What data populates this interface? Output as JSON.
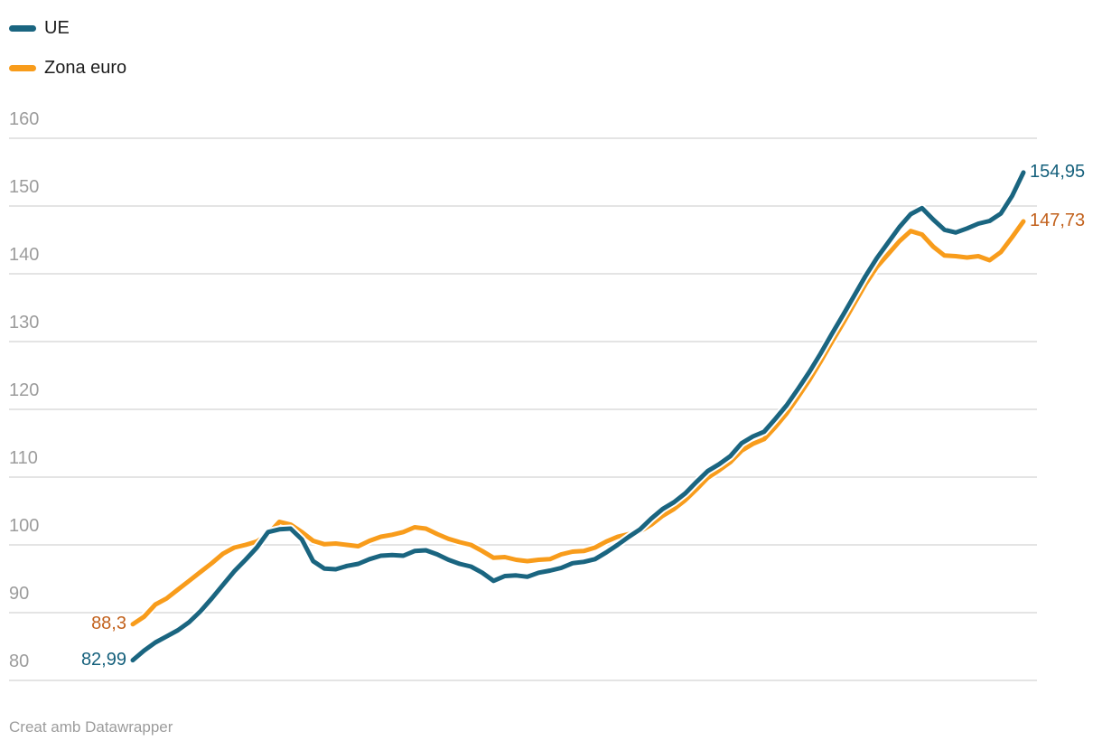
{
  "legend": {
    "items": [
      {
        "label": "UE",
        "color": "#1A6580"
      },
      {
        "label": "Zona euro",
        "color": "#F89C1B"
      }
    ]
  },
  "footer": {
    "text": "Creat amb Datawrapper"
  },
  "colors": {
    "ue_line": "#1A6580",
    "ue_label": "#15607C",
    "zona_euro_line": "#F89C1B",
    "zona_euro_label": "#C2611C",
    "gridline": "#E4E4E4",
    "axis_text": "#9C9C9C",
    "legend_text": "#1D1D1D",
    "background": "#FFFFFF"
  },
  "chart_data": {
    "type": "line",
    "title": "",
    "xlabel": "",
    "ylabel": "",
    "grid": true,
    "legend_position": "top-left",
    "y_axis": {
      "min": 80,
      "max": 160,
      "ticks": [
        80,
        90,
        100,
        110,
        120,
        130,
        140,
        150,
        160
      ]
    },
    "series": [
      {
        "name": "UE",
        "color": "#1A6580",
        "label_color": "#15607C",
        "start_label": "82,99",
        "end_label": "154,95",
        "start_value": 82.99,
        "end_value": 154.95,
        "values": [
          82.99,
          84.4,
          85.6,
          86.5,
          87.4,
          88.6,
          90.2,
          92.1,
          94.1,
          96.1,
          97.8,
          99.6,
          101.9,
          102.3,
          102.4,
          100.8,
          97.6,
          96.5,
          96.4,
          96.9,
          97.2,
          97.9,
          98.4,
          98.5,
          98.4,
          99.1,
          99.2,
          98.6,
          97.8,
          97.2,
          96.8,
          95.9,
          94.7,
          95.4,
          95.5,
          95.3,
          95.9,
          96.2,
          96.6,
          97.3,
          97.5,
          97.9,
          98.9,
          100.0,
          101.2,
          102.3,
          103.9,
          105.3,
          106.3,
          107.6,
          109.3,
          110.9,
          111.9,
          113.1,
          115.0,
          116.0,
          116.7,
          118.6,
          120.6,
          123.0,
          125.5,
          128.2,
          131.1,
          133.9,
          136.8,
          139.7,
          142.3,
          144.6,
          146.9,
          148.8,
          149.7,
          148.0,
          146.5,
          146.1,
          146.7,
          147.4,
          147.8,
          148.9,
          151.5,
          154.95
        ]
      },
      {
        "name": "Zona euro",
        "color": "#F89C1B",
        "label_color": "#C2611C",
        "start_label": "88,3",
        "end_label": "147,73",
        "start_value": 88.3,
        "end_value": 147.73,
        "values": [
          88.3,
          89.4,
          91.2,
          92.1,
          93.4,
          94.7,
          96.0,
          97.3,
          98.7,
          99.6,
          100.0,
          100.5,
          101.6,
          103.4,
          103.0,
          101.9,
          100.6,
          100.1,
          100.2,
          100.0,
          99.8,
          100.6,
          101.2,
          101.5,
          101.9,
          102.6,
          102.4,
          101.6,
          100.9,
          100.4,
          100.0,
          99.1,
          98.1,
          98.2,
          97.8,
          97.6,
          97.8,
          97.9,
          98.6,
          99.0,
          99.1,
          99.6,
          100.5,
          101.2,
          101.6,
          102.0,
          103.0,
          104.3,
          105.3,
          106.6,
          108.2,
          109.9,
          111.0,
          112.2,
          113.9,
          114.9,
          115.6,
          117.4,
          119.4,
          121.8,
          124.3,
          127.0,
          129.9,
          132.7,
          135.6,
          138.5,
          141.0,
          142.9,
          144.8,
          146.3,
          145.8,
          144.0,
          142.7,
          142.6,
          142.4,
          142.6,
          142.0,
          143.2,
          145.4,
          147.73
        ]
      }
    ]
  }
}
